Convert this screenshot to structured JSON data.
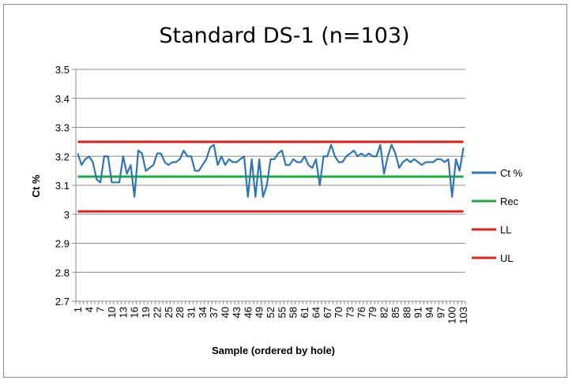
{
  "chart_data": {
    "type": "line",
    "title": "Standard DS-1 (n=103)",
    "xlabel": "Sample (ordered by hole)",
    "ylabel": "Ct %",
    "ylim": [
      2.7,
      3.5
    ],
    "yticks": [
      "3.5",
      "3.4",
      "3.3",
      "3.2",
      "3.1",
      "3",
      "2.9",
      "2.8",
      "2.7"
    ],
    "xticks": [
      "1",
      "4",
      "7",
      "10",
      "13",
      "16",
      "19",
      "22",
      "25",
      "28",
      "31",
      "34",
      "37",
      "40",
      "43",
      "46",
      "49",
      "52",
      "55",
      "58",
      "61",
      "64",
      "67",
      "70",
      "73",
      "76",
      "79",
      "82",
      "85",
      "88",
      "91",
      "94",
      "97",
      "100",
      "103"
    ],
    "x_count": 103,
    "grid": true,
    "legend_position": "right",
    "series": [
      {
        "name": "Ct %",
        "color": "#2e75b6",
        "values": [
          3.21,
          3.17,
          3.19,
          3.2,
          3.18,
          3.12,
          3.11,
          3.2,
          3.2,
          3.11,
          3.11,
          3.11,
          3.2,
          3.14,
          3.17,
          3.06,
          3.22,
          3.21,
          3.15,
          3.16,
          3.17,
          3.21,
          3.21,
          3.18,
          3.17,
          3.18,
          3.18,
          3.19,
          3.22,
          3.2,
          3.2,
          3.15,
          3.15,
          3.17,
          3.19,
          3.23,
          3.24,
          3.17,
          3.2,
          3.17,
          3.19,
          3.18,
          3.18,
          3.19,
          3.2,
          3.06,
          3.19,
          3.06,
          3.19,
          3.06,
          3.1,
          3.19,
          3.19,
          3.21,
          3.22,
          3.17,
          3.17,
          3.19,
          3.18,
          3.18,
          3.2,
          3.17,
          3.16,
          3.19,
          3.1,
          3.2,
          3.2,
          3.24,
          3.2,
          3.18,
          3.18,
          3.2,
          3.21,
          3.22,
          3.2,
          3.21,
          3.2,
          3.21,
          3.2,
          3.2,
          3.24,
          3.14,
          3.2,
          3.24,
          3.21,
          3.16,
          3.18,
          3.19,
          3.18,
          3.19,
          3.18,
          3.17,
          3.18,
          3.18,
          3.18,
          3.19,
          3.19,
          3.18,
          3.19,
          3.06,
          3.19,
          3.15,
          3.23
        ]
      },
      {
        "name": "Rec",
        "color": "#1fa842",
        "value": 3.13
      },
      {
        "name": "LL",
        "color": "#e0211b",
        "value": 3.01
      },
      {
        "name": "UL",
        "color": "#e0211b",
        "value": 3.25
      }
    ]
  }
}
